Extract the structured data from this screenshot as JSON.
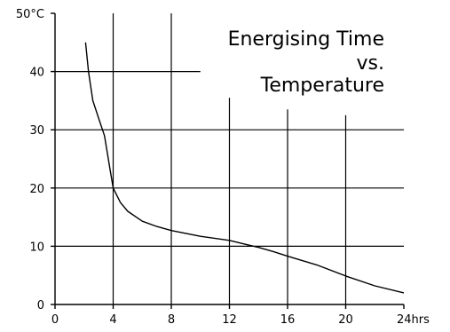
{
  "chart_data": {
    "type": "line",
    "title_lines": [
      "Energising Time",
      "vs.",
      "Temperature"
    ],
    "xlim": [
      0,
      24
    ],
    "ylim": [
      0,
      50
    ],
    "x_ticks": [
      0,
      4,
      8,
      12,
      16,
      20,
      24
    ],
    "x_tick_labels": [
      "0",
      "4",
      "8",
      "12",
      "16",
      "20",
      "24hrs"
    ],
    "y_ticks": [
      0,
      10,
      20,
      30,
      40,
      50
    ],
    "y_tick_labels": [
      "0",
      "10",
      "20",
      "30",
      "40",
      "50°C"
    ],
    "series": [
      {
        "x": [
          2.1,
          2.3,
          2.6,
          3.0,
          3.4,
          3.8,
          4.0,
          4.5,
          5.0,
          6.0,
          7.0,
          8.0,
          10.0,
          12.0,
          13.0,
          14.0,
          15.0,
          16.0,
          18.0,
          20.0,
          22.0,
          24.0
        ],
        "y": [
          45,
          40,
          35,
          32,
          29,
          23,
          20,
          17.5,
          16,
          14.3,
          13.4,
          12.7,
          11.7,
          11.0,
          10.4,
          9.8,
          9.1,
          8.3,
          6.8,
          4.9,
          3.2,
          2.0
        ]
      }
    ],
    "gridlines": {
      "vertical": [
        {
          "x": 4,
          "y_from": 0,
          "y_to": 50
        },
        {
          "x": 8,
          "y_from": 0,
          "y_to": 50
        },
        {
          "x": 12,
          "y_from": 0,
          "y_to": 35.5
        },
        {
          "x": 16,
          "y_from": 0,
          "y_to": 33.5
        },
        {
          "x": 20,
          "y_from": 0,
          "y_to": 32.5
        }
      ],
      "horizontal": [
        {
          "y": 10,
          "x_from": 0,
          "x_to": 24
        },
        {
          "y": 20,
          "x_from": 0,
          "x_to": 24
        },
        {
          "y": 30,
          "x_from": 0,
          "x_to": 24
        },
        {
          "y": 40,
          "x_from": 0,
          "x_to": 10
        }
      ]
    }
  }
}
